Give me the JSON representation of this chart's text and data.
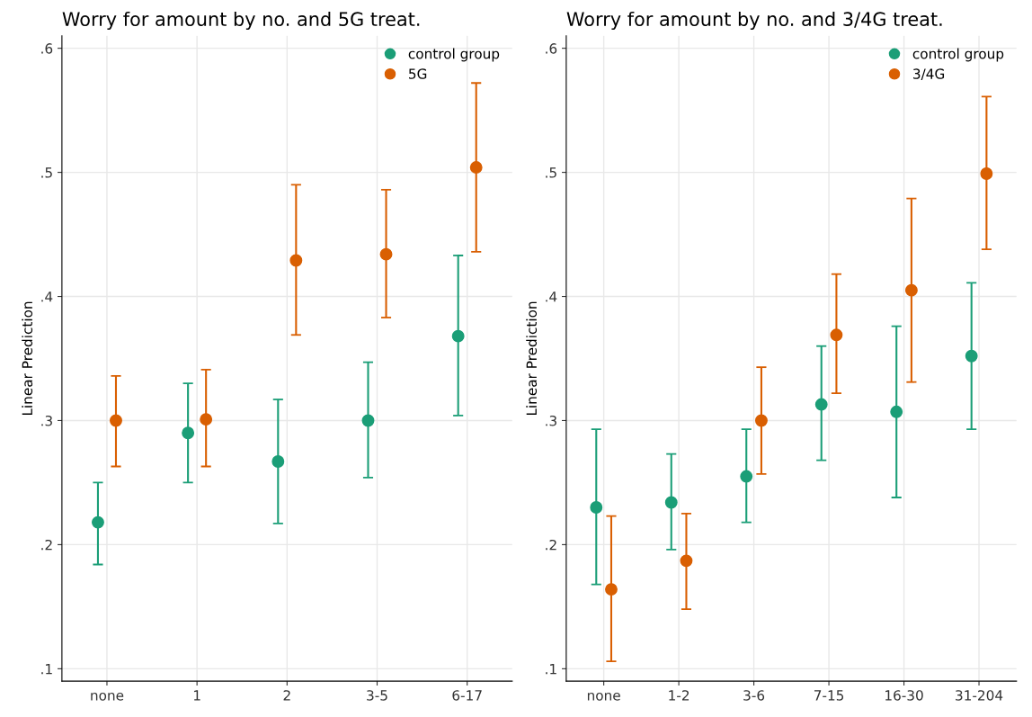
{
  "chart_data": [
    {
      "type": "scatter",
      "title": "Worry for amount by no. and 5G treat.",
      "ylabel": "Linear Prediction",
      "categories": [
        "none",
        "1",
        "2",
        "3-5",
        "6-17"
      ],
      "ylim": [
        0.09,
        0.61
      ],
      "yticks": [
        {
          "value": 0.1,
          "label": ".1"
        },
        {
          "value": 0.2,
          "label": ".2"
        },
        {
          "value": 0.3,
          "label": ".3"
        },
        {
          "value": 0.4,
          "label": ".4"
        },
        {
          "value": 0.5,
          "label": ".5"
        },
        {
          "value": 0.6,
          "label": ".6"
        }
      ],
      "grid": true,
      "legend": "top right",
      "marker": "circle",
      "series": [
        {
          "name": "control group",
          "color": "#1b9e77",
          "values": [
            0.218,
            0.29,
            0.267,
            0.3,
            0.368
          ],
          "errors": [
            [
              0.184,
              0.25
            ],
            [
              0.25,
              0.33
            ],
            [
              0.217,
              0.317
            ],
            [
              0.254,
              0.347
            ],
            [
              0.304,
              0.433
            ]
          ]
        },
        {
          "name": "5G",
          "color": "#d95f02",
          "values": [
            0.3,
            0.301,
            0.429,
            0.434,
            0.504
          ],
          "errors": [
            [
              0.263,
              0.336
            ],
            [
              0.263,
              0.341
            ],
            [
              0.369,
              0.49
            ],
            [
              0.383,
              0.486
            ],
            [
              0.436,
              0.572
            ]
          ]
        }
      ]
    },
    {
      "type": "scatter",
      "title": "Worry for amount by no. and 3/4G treat.",
      "ylabel": "Linear Prediction",
      "categories": [
        "none",
        "1-2",
        "3-6",
        "7-15",
        "16-30",
        "31-204"
      ],
      "ylim": [
        0.09,
        0.61
      ],
      "yticks": [
        {
          "value": 0.1,
          "label": ".1"
        },
        {
          "value": 0.2,
          "label": ".2"
        },
        {
          "value": 0.3,
          "label": ".3"
        },
        {
          "value": 0.4,
          "label": ".4"
        },
        {
          "value": 0.5,
          "label": ".5"
        },
        {
          "value": 0.6,
          "label": ".6"
        }
      ],
      "grid": true,
      "legend": "top right",
      "marker": "circle",
      "series": [
        {
          "name": "control group",
          "color": "#1b9e77",
          "values": [
            0.23,
            0.234,
            0.255,
            0.313,
            0.307,
            0.352
          ],
          "errors": [
            [
              0.168,
              0.293
            ],
            [
              0.196,
              0.273
            ],
            [
              0.218,
              0.293
            ],
            [
              0.268,
              0.36
            ],
            [
              0.238,
              0.376
            ],
            [
              0.293,
              0.411
            ]
          ]
        },
        {
          "name": "3/4G",
          "color": "#d95f02",
          "values": [
            0.164,
            0.187,
            0.3,
            0.369,
            0.405,
            0.499
          ],
          "errors": [
            [
              0.106,
              0.223
            ],
            [
              0.148,
              0.225
            ],
            [
              0.257,
              0.343
            ],
            [
              0.322,
              0.418
            ],
            [
              0.331,
              0.479
            ],
            [
              0.438,
              0.561
            ]
          ]
        }
      ]
    }
  ]
}
